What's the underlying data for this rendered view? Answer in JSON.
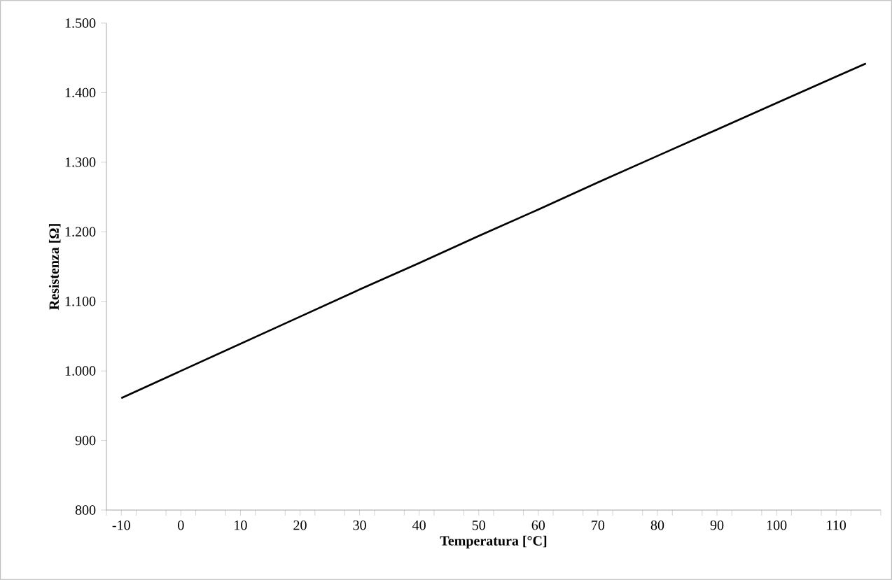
{
  "chart_data": {
    "type": "line",
    "xlabel": "Temperatura [°C]",
    "ylabel": "Resistenza [Ω]",
    "x": [
      -10,
      0,
      10,
      20,
      30,
      40,
      50,
      60,
      70,
      80,
      90,
      100,
      110,
      115
    ],
    "series": [
      {
        "color": "#000000",
        "values": [
          961,
          1000,
          1039,
          1078,
          1117,
          1155,
          1194,
          1232,
          1271,
          1309,
          1347,
          1385,
          1423,
          1442
        ]
      }
    ],
    "xlim": [
      -12.5,
      117.5
    ],
    "xticks": [
      {
        "value": -12.5,
        "label": null
      },
      {
        "value": -10,
        "label": "-10"
      },
      {
        "value": -7.5,
        "label": null
      },
      {
        "value": -2.5,
        "label": null
      },
      {
        "value": 0,
        "label": "0"
      },
      {
        "value": 2.5,
        "label": null
      },
      {
        "value": 7.5,
        "label": null
      },
      {
        "value": 10,
        "label": "10"
      },
      {
        "value": 12.5,
        "label": null
      },
      {
        "value": 17.5,
        "label": null
      },
      {
        "value": 20,
        "label": "20"
      },
      {
        "value": 22.5,
        "label": null
      },
      {
        "value": 27.5,
        "label": null
      },
      {
        "value": 30,
        "label": "30"
      },
      {
        "value": 32.5,
        "label": null
      },
      {
        "value": 37.5,
        "label": null
      },
      {
        "value": 40,
        "label": "40"
      },
      {
        "value": 42.5,
        "label": null
      },
      {
        "value": 47.5,
        "label": null
      },
      {
        "value": 50,
        "label": "50"
      },
      {
        "value": 52.5,
        "label": null
      },
      {
        "value": 57.5,
        "label": null
      },
      {
        "value": 60,
        "label": "60"
      },
      {
        "value": 62.5,
        "label": null
      },
      {
        "value": 67.5,
        "label": null
      },
      {
        "value": 70,
        "label": "70"
      },
      {
        "value": 72.5,
        "label": null
      },
      {
        "value": 77.5,
        "label": null
      },
      {
        "value": 80,
        "label": "80"
      },
      {
        "value": 82.5,
        "label": null
      },
      {
        "value": 87.5,
        "label": null
      },
      {
        "value": 90,
        "label": "90"
      },
      {
        "value": 92.5,
        "label": null
      },
      {
        "value": 97.5,
        "label": null
      },
      {
        "value": 100,
        "label": "100"
      },
      {
        "value": 102.5,
        "label": null
      },
      {
        "value": 107.5,
        "label": null
      },
      {
        "value": 110,
        "label": "110"
      },
      {
        "value": 112.5,
        "label": null
      },
      {
        "value": 117.5,
        "label": null
      }
    ],
    "ylim": [
      800,
      1500
    ],
    "yticks": [
      {
        "value": 800,
        "label": "800"
      },
      {
        "value": 900,
        "label": "900"
      },
      {
        "value": 1000,
        "label": "1.000"
      },
      {
        "value": 1100,
        "label": "1.100"
      },
      {
        "value": 1200,
        "label": "1.200"
      },
      {
        "value": 1300,
        "label": "1.300"
      },
      {
        "value": 1400,
        "label": "1.400"
      },
      {
        "value": 1500,
        "label": "1.500"
      }
    ],
    "grid": false,
    "marker": "none",
    "line_style": "solid"
  }
}
